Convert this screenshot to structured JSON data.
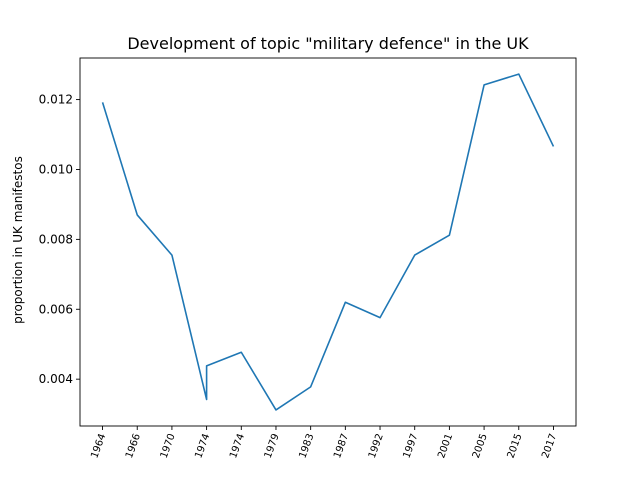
{
  "chart_data": {
    "type": "line",
    "title": "Development of topic \"military defence\" in the UK",
    "xlabel": "",
    "ylabel": "proportion in UK manifestos",
    "categories": [
      "1964",
      "1966",
      "1970",
      "1974",
      "1974",
      "1979",
      "1983",
      "1987",
      "1992",
      "1997",
      "2001",
      "2005",
      "2015",
      "2017"
    ],
    "series": [
      {
        "name": "",
        "color": "#1f77b4",
        "points": [
          {
            "x": 0,
            "y": 0.01192
          },
          {
            "x": 1,
            "y": 0.0087
          },
          {
            "x": 2,
            "y": 0.00755
          },
          {
            "x": 3,
            "y": 0.00342
          },
          {
            "x": 3,
            "y": 0.00438
          },
          {
            "x": 4,
            "y": 0.00477
          },
          {
            "x": 5,
            "y": 0.00312
          },
          {
            "x": 6,
            "y": 0.00378
          },
          {
            "x": 7,
            "y": 0.0062
          },
          {
            "x": 8,
            "y": 0.00576
          },
          {
            "x": 9,
            "y": 0.00755
          },
          {
            "x": 10,
            "y": 0.00812
          },
          {
            "x": 11,
            "y": 0.01242
          },
          {
            "x": 12,
            "y": 0.01273
          },
          {
            "x": 13,
            "y": 0.01066
          }
        ]
      }
    ],
    "yticks": [
      "0.004",
      "0.006",
      "0.008",
      "0.010",
      "0.012"
    ],
    "ylim": [
      0.00266,
      0.01319
    ],
    "xlim": [
      -0.65,
      13.65
    ],
    "grid": false,
    "legend": "none"
  }
}
